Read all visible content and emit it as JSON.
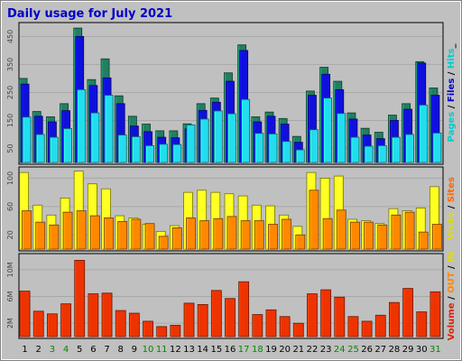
{
  "chart_data": {
    "type": "bar",
    "title": "Daily usage for July 2021",
    "days": [
      "1",
      "2",
      "3",
      "4",
      "5",
      "6",
      "7",
      "8",
      "9",
      "10",
      "11",
      "12",
      "13",
      "14",
      "15",
      "16",
      "17",
      "18",
      "19",
      "20",
      "21",
      "22",
      "23",
      "24",
      "25",
      "26",
      "27",
      "28",
      "29",
      "30",
      "31"
    ],
    "weekend_days": [
      "3",
      "4",
      "10",
      "11",
      "17",
      "18",
      "24",
      "25",
      "31"
    ],
    "panels": [
      {
        "id": "hits",
        "side_label_parts": [
          "Pages",
          " / ",
          "Files",
          " / ",
          "Hits",
          "_"
        ],
        "side_label_colors": [
          "#00cccc",
          "#000000",
          "#0000cc",
          "#000000",
          "#00cccc",
          "#000000"
        ],
        "y_ticks": [
          "450",
          "350",
          "250",
          "150",
          "50"
        ],
        "y_tick_values": [
          450,
          350,
          250,
          150,
          50
        ],
        "ymax": 490,
        "series": [
          {
            "name": "Hits",
            "color": "#208060",
            "values": [
              300,
              182,
              163,
              210,
              480,
              296,
              370,
              238,
              165,
              137,
              113,
              113,
              138,
              210,
              230,
              320,
              420,
              163,
              180,
              157,
              93,
              255,
              340,
              290,
              177,
              122,
              108,
              169,
              210,
              360,
              266
            ]
          },
          {
            "name": "Files",
            "color": "#1010dd",
            "values": [
              280,
              165,
              145,
              185,
              450,
              275,
              302,
              210,
              130,
              110,
              90,
              88,
              120,
              186,
              215,
              290,
              400,
              145,
              165,
              137,
              72,
              240,
              315,
              260,
              155,
              98,
              85,
              150,
              190,
              355,
              240
            ]
          },
          {
            "name": "Pages",
            "color": "#22ddee",
            "values": [
              162,
              100,
              90,
              121,
              260,
              177,
              240,
              98,
              92,
              60,
              65,
              64,
              134,
              155,
              184,
              174,
              225,
              104,
              102,
              75,
              45,
              117,
              230,
              175,
              90,
              58,
              60,
              90,
              100,
              205,
              105
            ]
          }
        ]
      },
      {
        "id": "visits",
        "side_label_parts": [
          "Visits",
          " / ",
          "Sites"
        ],
        "side_label_colors": [
          "#dddd00",
          "#000000",
          "#ff6600"
        ],
        "y_ticks": [
          "100",
          "60",
          "20"
        ],
        "y_tick_values": [
          100,
          60,
          20
        ],
        "ymax": 112,
        "series": [
          {
            "name": "Visits",
            "color": "#ffff22",
            "values": [
              108,
              62,
              48,
              72,
              110,
              92,
              85,
              47,
              44,
              35,
              25,
              33,
              80,
              83,
              80,
              78,
              75,
              62,
              61,
              48,
              32,
              108,
              100,
              103,
              42,
              40,
              36,
              57,
              54,
              58,
              88
            ]
          },
          {
            "name": "Sites",
            "color": "#ff8800",
            "values": [
              54,
              38,
              34,
              52,
              54,
              47,
              44,
              39,
              42,
              36,
              18,
              30,
              44,
              40,
              43,
              46,
              40,
              40,
              35,
              42,
              20,
              83,
              43,
              55,
              38,
              38,
              34,
              48,
              52,
              24,
              35
            ]
          }
        ]
      },
      {
        "id": "volume",
        "side_label_parts": [
          "Volume",
          " / ",
          "OUT",
          " / ",
          "IN"
        ],
        "side_label_colors": [
          "#dd2200",
          "#000000",
          "#ff8800",
          "#000000",
          "#dddd00"
        ],
        "y_ticks": [
          "10M",
          "6M",
          "2M"
        ],
        "y_tick_values": [
          10,
          6,
          2
        ],
        "ymax": 12,
        "series": [
          {
            "name": "Volume",
            "color": "#ee3300",
            "values": [
              6.8,
              3.8,
              3.4,
              4.9,
              11.4,
              6.4,
              6.5,
              3.9,
              3.5,
              2.3,
              1.5,
              1.7,
              5.0,
              4.8,
              6.9,
              5.7,
              8.2,
              3.3,
              4.0,
              3.0,
              2.0,
              6.4,
              7.0,
              5.9,
              3.0,
              2.3,
              3.2,
              5.1,
              7.2,
              3.7,
              6.7
            ]
          }
        ]
      }
    ]
  }
}
